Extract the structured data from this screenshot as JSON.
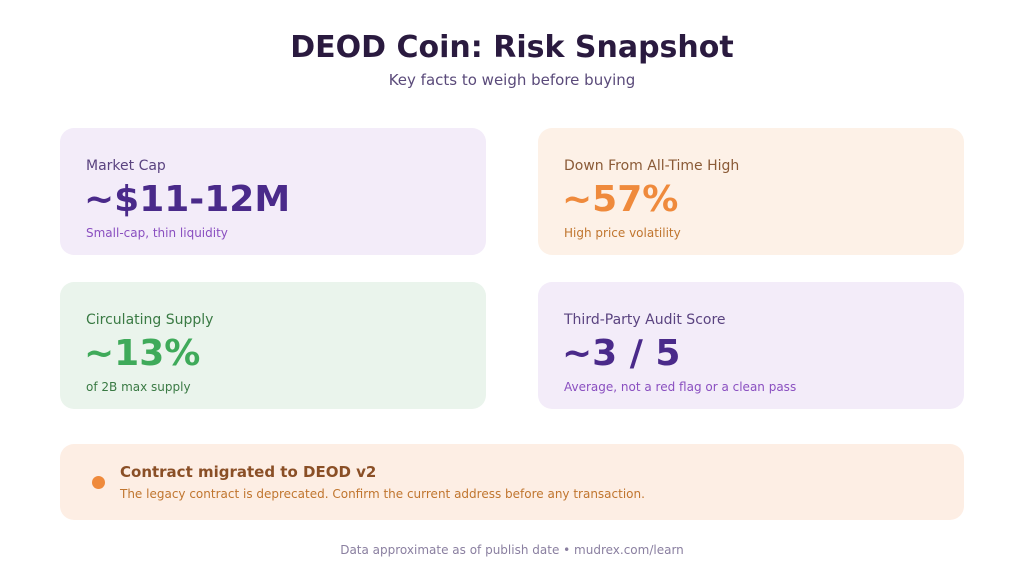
{
  "header": {
    "title": "DEOD Coin: Risk Snapshot",
    "subtitle": "Key facts to weigh before buying"
  },
  "cards": [
    {
      "label": "Market Cap",
      "value": "~$11-12M",
      "note": "Small-cap, thin liquidity",
      "theme": "purple"
    },
    {
      "label": "Down From All-Time High",
      "value": "~57%",
      "note": "High price volatility",
      "theme": "orange"
    },
    {
      "label": "Circulating Supply",
      "value": "~13%",
      "note": "of 2B max supply",
      "theme": "green"
    },
    {
      "label": "Third-Party Audit Score",
      "value": "~3 / 5",
      "note": "Average, not a red flag or a clean pass",
      "theme": "purple"
    }
  ],
  "banner": {
    "title": "Contract migrated to DEOD v2",
    "text": "The legacy contract is deprecated. Confirm the current address before any transaction."
  },
  "footer": {
    "text": "Data approximate as of publish date • mudrex.com/learn"
  },
  "colors": {
    "purple_accent": "#4a2a8a",
    "orange_accent": "#ef8a3c",
    "green_accent": "#3faa5a"
  }
}
